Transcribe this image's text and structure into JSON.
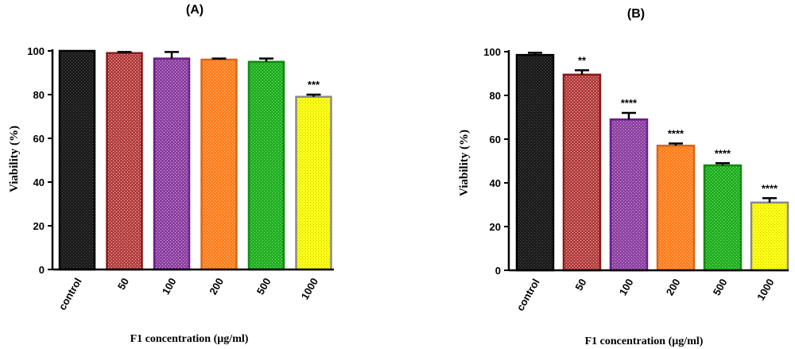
{
  "chart_data": [
    {
      "type": "bar",
      "panel_label": "(A)",
      "categories": [
        "control",
        "50",
        "100",
        "200",
        "500",
        "1000"
      ],
      "values": [
        100,
        99,
        96.5,
        96,
        95,
        79
      ],
      "errors": [
        0,
        0.5,
        3,
        0.5,
        1.5,
        1
      ],
      "annotations": [
        "",
        "",
        "",
        "",
        "",
        "***"
      ],
      "colors": [
        "#1a1a1a",
        "#b33d3d",
        "#8b3fa0",
        "#ff7f1f",
        "#1fae1f",
        "#ffff1a"
      ],
      "edge_colors": [
        "#000000",
        "#8b1a1a",
        "#6a1f8a",
        "#d9661a",
        "#138a13",
        "#8a8a8a"
      ],
      "ylabel": "Viability (%)",
      "xlabel": "F1 concentration (µg/ml)",
      "ylim": [
        0,
        100
      ],
      "yticks": [
        0,
        20,
        40,
        60,
        80,
        100
      ]
    },
    {
      "type": "bar",
      "panel_label": "(B)",
      "categories": [
        "control",
        "50",
        "100",
        "200",
        "500",
        "1000"
      ],
      "values": [
        98.5,
        89.5,
        69,
        57,
        48,
        31
      ],
      "errors": [
        1,
        2,
        3,
        1,
        1,
        2
      ],
      "annotations": [
        "",
        "**",
        "****",
        "****",
        "****",
        "****"
      ],
      "colors": [
        "#1a1a1a",
        "#b33d3d",
        "#8b3fa0",
        "#ff7f1f",
        "#1fae1f",
        "#ffff1a"
      ],
      "edge_colors": [
        "#000000",
        "#8b1a1a",
        "#6a1f8a",
        "#d9661a",
        "#138a13",
        "#8a8a8a"
      ],
      "ylabel": "Viability (%)",
      "xlabel": "F1 concentration (µg/ml)",
      "ylim": [
        0,
        100
      ],
      "yticks": [
        0,
        20,
        40,
        60,
        80,
        100
      ]
    }
  ]
}
